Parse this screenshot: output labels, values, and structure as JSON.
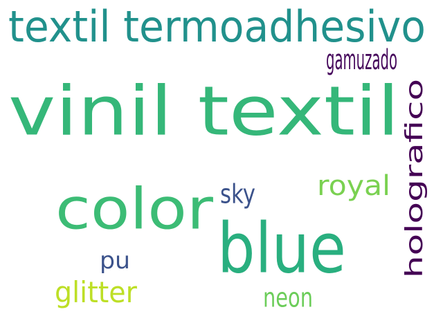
{
  "words": [
    {
      "text": "textil termoadhesivo",
      "color": "#21918c"
    },
    {
      "text": "vinil textil",
      "color": "#35b779"
    },
    {
      "text": "color",
      "color": "#3cbc75"
    },
    {
      "text": "blue",
      "color": "#29af7f"
    },
    {
      "text": "holografico",
      "color": "#440154"
    },
    {
      "text": "gamuzado",
      "color": "#46085c"
    },
    {
      "text": "royal",
      "color": "#7ad151"
    },
    {
      "text": "sky",
      "color": "#3b528b"
    },
    {
      "text": "pu",
      "color": "#3b528b"
    },
    {
      "text": "glitter",
      "color": "#bddf26"
    },
    {
      "text": "neon",
      "color": "#6ccd5a"
    }
  ]
}
